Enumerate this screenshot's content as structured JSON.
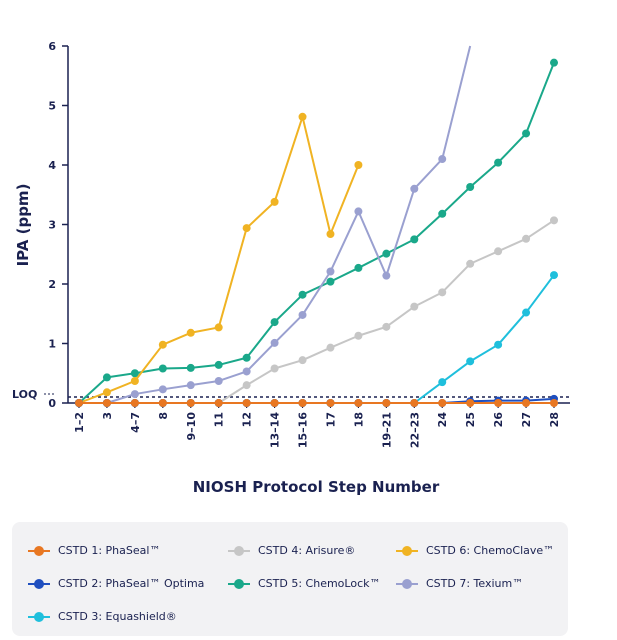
{
  "chart_data": {
    "type": "line",
    "title": "",
    "xlabel": "NIOSH Protocol Step Number",
    "ylabel": "IPA (ppm)",
    "ylim": [
      0,
      6
    ],
    "yticks": [
      0,
      1,
      2,
      3,
      4,
      5,
      6
    ],
    "categories": [
      "1–2",
      "3",
      "4–7",
      "8",
      "9–10",
      "11",
      "12",
      "13–14",
      "15–16",
      "17",
      "18",
      "19–21",
      "22–23",
      "24",
      "25",
      "26",
      "27",
      "28"
    ],
    "loq": {
      "label": "LOQ",
      "value": 0.1
    },
    "legend_position": "bottom",
    "series": [
      {
        "name": "CSTD 1: PhaSeal™",
        "color": "#e87722",
        "values": [
          0,
          0,
          0,
          0,
          0,
          0,
          0,
          0,
          0,
          0,
          0,
          0,
          0,
          0,
          0,
          0,
          0,
          0
        ]
      },
      {
        "name": "CSTD 2: PhaSeal™ Optima",
        "color": "#1f4fbf",
        "values": [
          0,
          0,
          0,
          0,
          0,
          0,
          0,
          0,
          0,
          0,
          0,
          0,
          0,
          0,
          0.03,
          0.04,
          0.04,
          0.07
        ]
      },
      {
        "name": "CSTD 3: Equashield®",
        "color": "#1fbfdc",
        "values": [
          0,
          0,
          0,
          0,
          0,
          0,
          0,
          0,
          0,
          0,
          0,
          0,
          0,
          0.35,
          0.7,
          0.98,
          1.52,
          2.15
        ]
      },
      {
        "name": "CSTD 4: Arisure®",
        "color": "#c6c6c6",
        "values": [
          0,
          0,
          0,
          0,
          0,
          0,
          0.3,
          0.58,
          0.72,
          0.93,
          1.13,
          1.28,
          1.62,
          1.86,
          2.34,
          2.55,
          2.76,
          3.07
        ]
      },
      {
        "name": "CSTD 5: ChemoLock™",
        "color": "#1aa88a",
        "values": [
          0,
          0.43,
          0.5,
          0.58,
          0.59,
          0.64,
          0.76,
          1.36,
          1.82,
          2.04,
          2.27,
          2.51,
          2.75,
          3.18,
          3.63,
          4.04,
          4.53,
          5.72
        ]
      },
      {
        "name": "CSTD 6: ChemoClave™",
        "color": "#f0b323",
        "values": [
          0,
          0.18,
          0.37,
          0.98,
          1.18,
          1.27,
          2.94,
          3.38,
          4.81,
          2.84,
          4.0,
          null,
          null,
          null,
          null,
          null,
          null,
          null
        ]
      },
      {
        "name": "CSTD 7: Texium™",
        "color": "#9aa0d0",
        "values": [
          0,
          0,
          0.15,
          0.23,
          0.3,
          0.37,
          0.53,
          1.01,
          1.48,
          2.21,
          3.22,
          2.14,
          3.6,
          4.1,
          6.0,
          null,
          null,
          null
        ]
      }
    ]
  }
}
